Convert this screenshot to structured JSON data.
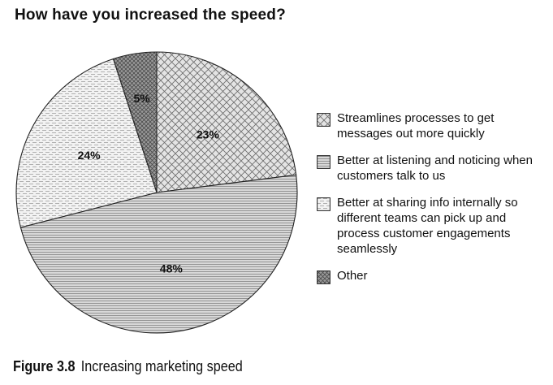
{
  "chart_data": {
    "type": "pie",
    "title": "How have you increased the speed?",
    "slices": [
      {
        "label": "Streamlines processes to get messages out more quickly",
        "value": 23,
        "value_label": "23%",
        "pattern": "crosshatch",
        "fill": "#e4e4e4"
      },
      {
        "label": "Better at listening and noticing when customers talk to us",
        "value": 48,
        "value_label": "48%",
        "pattern": "horizontal-lines",
        "fill": "#cfcfcf"
      },
      {
        "label": "Better at sharing info internally so different teams can pick up and process customer engagements seamlessly",
        "value": 24,
        "value_label": "24%",
        "pattern": "dashed-lines",
        "fill": "#eeeeee"
      },
      {
        "label": "Other",
        "value": 5,
        "value_label": "5%",
        "pattern": "dense-crosshatch",
        "fill": "#9a9a9a"
      }
    ],
    "start_angle_deg": 0,
    "direction": "clockwise",
    "legend_position": "right"
  },
  "caption": {
    "number": "Figure 3.8",
    "text": "Increasing marketing speed"
  }
}
